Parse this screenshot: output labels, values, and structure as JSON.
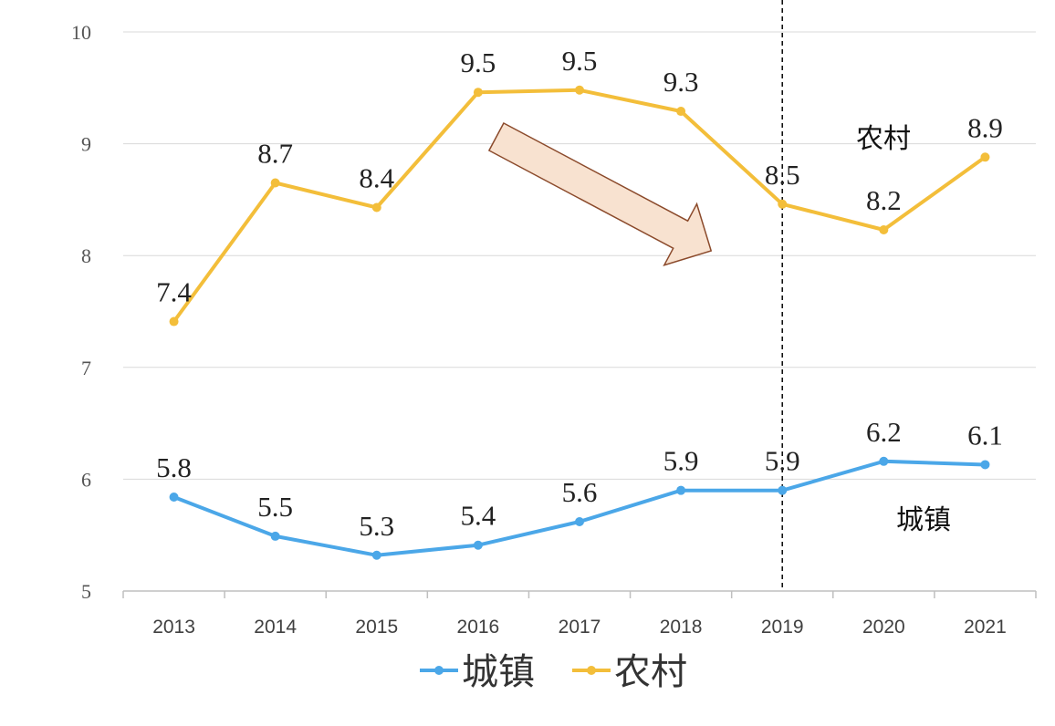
{
  "colors": {
    "urban": "#4BA7E8",
    "rural": "#F3BE3A",
    "grid": "#D9D9D9",
    "axis": "#BFBFBF",
    "arrow_fill": "#F8E2D0",
    "arrow_stroke": "#8B4A2B"
  },
  "chart_data": {
    "type": "line",
    "categories": [
      "2013",
      "2014",
      "2015",
      "2016",
      "2017",
      "2018",
      "2019",
      "2020",
      "2021"
    ],
    "series": [
      {
        "name": "城镇",
        "color_key": "urban",
        "values": [
          5.84,
          5.49,
          5.32,
          5.41,
          5.62,
          5.9,
          5.9,
          6.16,
          6.13
        ],
        "labels": [
          "5.8",
          "5.5",
          "5.3",
          "5.4",
          "5.6",
          "5.9",
          "5.9",
          "6.2",
          "6.1"
        ]
      },
      {
        "name": "农村",
        "color_key": "rural",
        "values": [
          7.41,
          8.65,
          8.43,
          9.46,
          9.48,
          9.29,
          8.46,
          8.23,
          8.88
        ],
        "labels": [
          "7.4",
          "8.7",
          "8.4",
          "9.5",
          "9.5",
          "9.3",
          "8.5",
          "8.2",
          "8.9"
        ]
      }
    ],
    "ylim": [
      5,
      10
    ],
    "yticks": [
      5,
      6,
      7,
      8,
      9,
      10
    ],
    "grid": true,
    "legend_position": "bottom",
    "annotations": [
      {
        "text": "农村",
        "near_series": "农村"
      },
      {
        "text": "城镇",
        "near_series": "城镇"
      }
    ],
    "reference_line": {
      "x_category": "2019",
      "style": "dashed"
    },
    "trend_arrow": {
      "from_category": "2016",
      "to_category": "2019",
      "direction": "down"
    }
  }
}
